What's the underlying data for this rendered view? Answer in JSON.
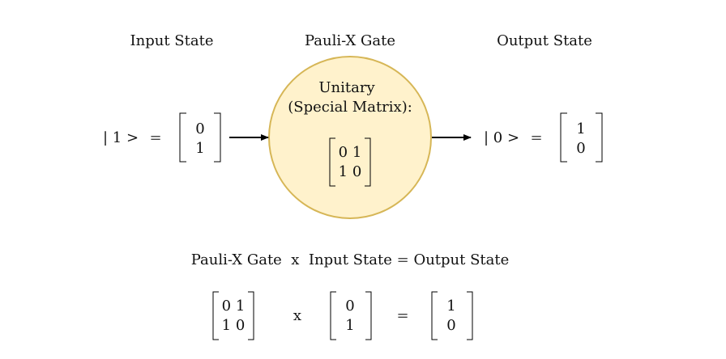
{
  "headers": {
    "input": "Input State",
    "gate": "Pauli-X Gate",
    "output": "Output State"
  },
  "gate": {
    "line1": "Unitary",
    "line2": "(Special Matrix):",
    "matrix_row1": "0 1",
    "matrix_row2": "1 0",
    "fill_color": "#fff2cc",
    "stroke_color": "#d6b656"
  },
  "input_state": {
    "ket": "| 1 >",
    "equals": "=",
    "vec_row1": "0",
    "vec_row2": "1"
  },
  "output_state": {
    "ket": "| 0 >",
    "equals": "=",
    "vec_row1": "1",
    "vec_row2": "0"
  },
  "equation": {
    "text_gate": "Pauli-X Gate",
    "text_x": "x",
    "text_input": "Input State",
    "text_equals": "=",
    "text_output": "Output State",
    "gate_row1": "0 1",
    "gate_row2": "1 0",
    "times": "x",
    "input_row1": "0",
    "input_row2": "1",
    "equals": "=",
    "output_row1": "1",
    "output_row2": "0"
  }
}
